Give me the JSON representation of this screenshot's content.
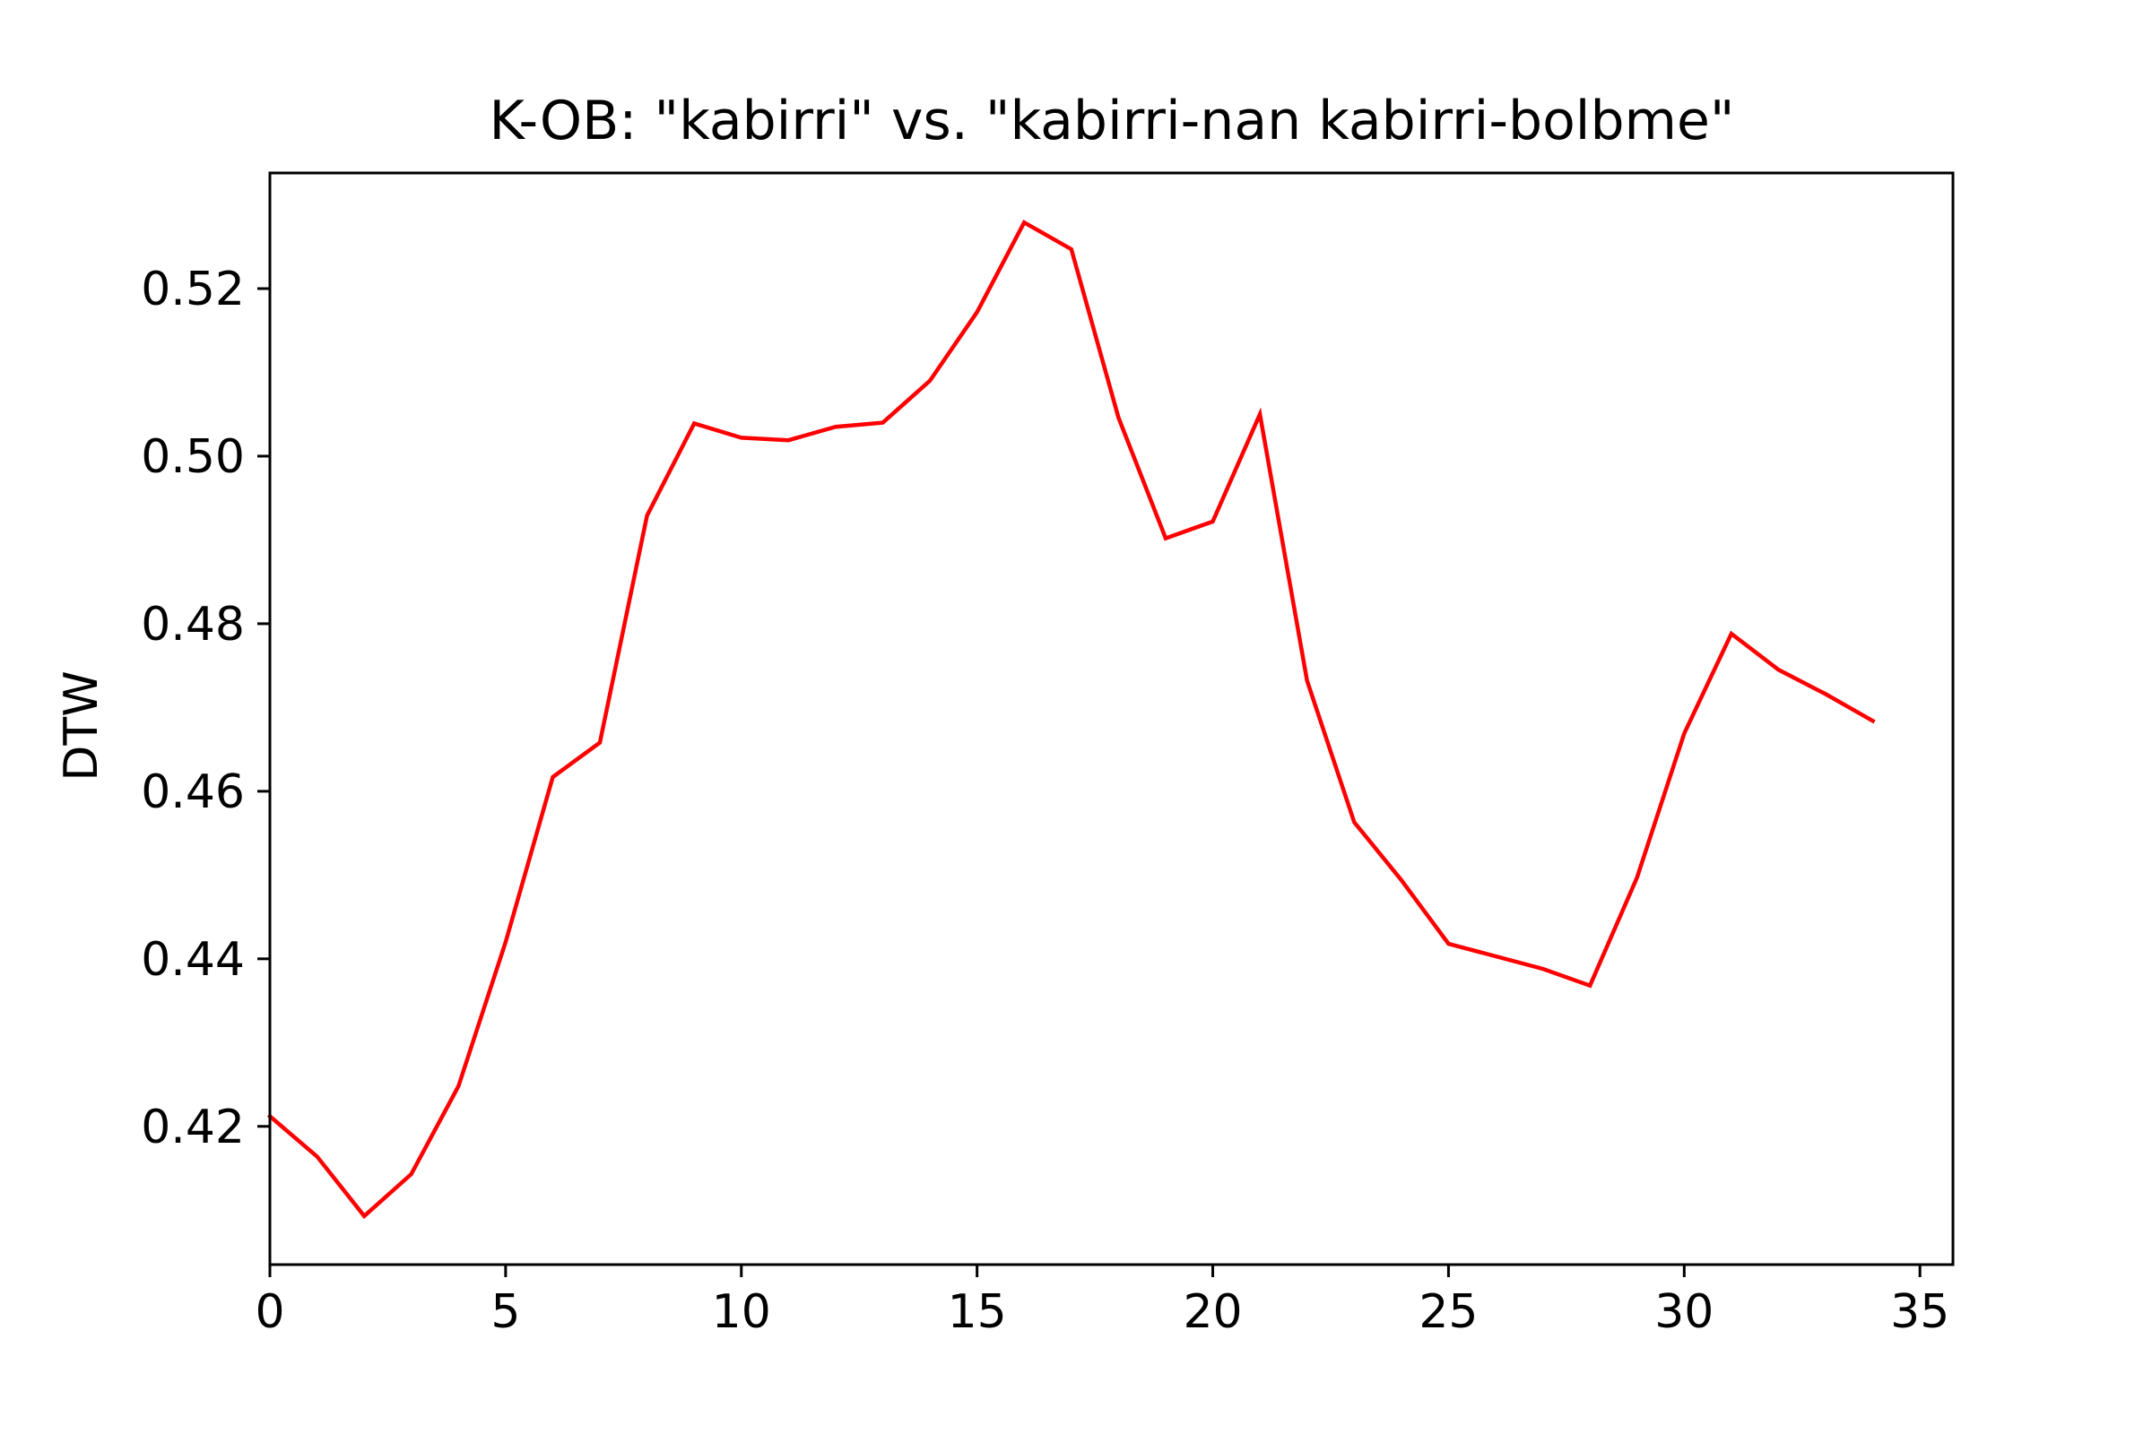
{
  "chart_data": {
    "type": "line",
    "title": "K-OB: \"kabirri\" vs. \"kabirri-nan kabirri-bolbme\"",
    "xlabel": "",
    "ylabel": "DTW",
    "xlim": [
      0,
      35.7
    ],
    "ylim": [
      0.4035,
      0.5338
    ],
    "xticks": [
      0,
      5,
      10,
      15,
      20,
      25,
      30,
      35
    ],
    "yticks": [
      0.42,
      0.44,
      0.46,
      0.48,
      0.5,
      0.52
    ],
    "grid": false,
    "series": [
      {
        "color": "#ff0000",
        "x": [
          0,
          1,
          2,
          3,
          4,
          5,
          6,
          7,
          8,
          9,
          10,
          11,
          12,
          13,
          14,
          15,
          16,
          17,
          18,
          19,
          20,
          21,
          22,
          23,
          24,
          25,
          26,
          27,
          28,
          29,
          30,
          31,
          32,
          33,
          34
        ],
        "y": [
          0.4212,
          0.4164,
          0.4093,
          0.4143,
          0.4248,
          0.442,
          0.4617,
          0.4658,
          0.4929,
          0.5039,
          0.5022,
          0.5019,
          0.5035,
          0.504,
          0.509,
          0.5172,
          0.5279,
          0.5247,
          0.5046,
          0.4902,
          0.4922,
          0.505,
          0.4732,
          0.4563,
          0.4494,
          0.4418,
          0.4403,
          0.4388,
          0.4368,
          0.4497,
          0.4669,
          0.4788,
          0.4745,
          0.4716,
          0.4684
        ]
      }
    ]
  }
}
